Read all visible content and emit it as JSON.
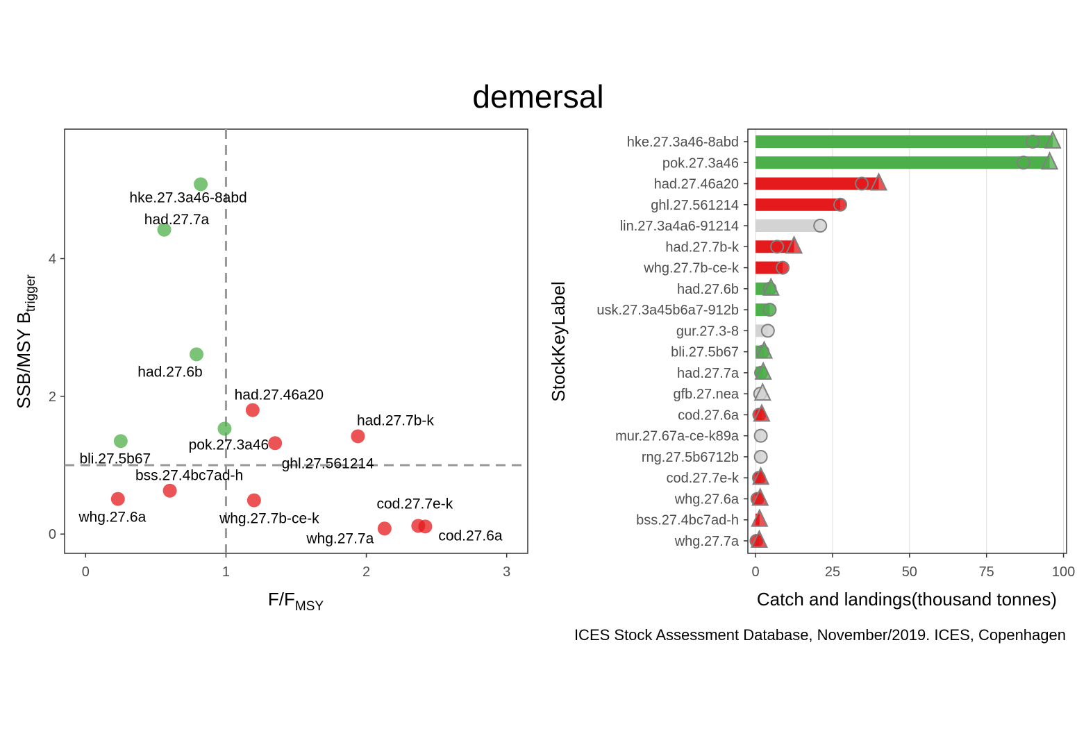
{
  "title": "demersal",
  "caption": "ICES Stock Assessment Database, November/2019. ICES, Copenhagen",
  "colors": {
    "green": "#4daf4a",
    "red": "#e41a1c",
    "grey": "#d3d3d3",
    "refline": "#999999",
    "outline": "#808080"
  },
  "chart_data": [
    {
      "type": "scatter",
      "title": "",
      "xlabel_main": "F/F",
      "xlabel_sub": "MSY",
      "ylabel_main": "SSB/MSY B",
      "ylabel_sub": "trigger",
      "xlim": [
        -0.15,
        3.15
      ],
      "ylim": [
        -0.28,
        5.88
      ],
      "xticks": [
        0,
        1,
        2,
        3
      ],
      "yticks": [
        0,
        2,
        4
      ],
      "reference_lines": {
        "x": 1,
        "y": 1
      },
      "points": [
        {
          "label": "hke.27.3a46-8abd",
          "x": 0.82,
          "y": 5.08,
          "status": "green"
        },
        {
          "label": "had.27.7a",
          "x": 0.56,
          "y": 4.42,
          "status": "green"
        },
        {
          "label": "had.27.6b",
          "x": 0.79,
          "y": 2.61,
          "status": "green"
        },
        {
          "label": "pok.27.3a46",
          "x": 0.99,
          "y": 1.53,
          "status": "green"
        },
        {
          "label": "bli.27.5b67",
          "x": 0.25,
          "y": 1.35,
          "status": "green"
        },
        {
          "label": "had.27.46a20",
          "x": 1.19,
          "y": 1.8,
          "status": "red"
        },
        {
          "label": "had.27.7b-k",
          "x": 1.94,
          "y": 1.42,
          "status": "red"
        },
        {
          "label": "ghl.27.561214",
          "x": 1.35,
          "y": 1.32,
          "status": "red"
        },
        {
          "label": "bss.27.4bc7ad-h",
          "x": 0.6,
          "y": 0.63,
          "status": "red"
        },
        {
          "label": "whg.27.6a",
          "x": 0.23,
          "y": 0.51,
          "status": "red"
        },
        {
          "label": "whg.27.7b-ce-k",
          "x": 1.2,
          "y": 0.49,
          "status": "red"
        },
        {
          "label": "cod.27.7e-k",
          "x": 2.37,
          "y": 0.12,
          "status": "red"
        },
        {
          "label": "cod.27.6a",
          "x": 2.42,
          "y": 0.11,
          "status": "red"
        },
        {
          "label": "whg.27.7a",
          "x": 2.13,
          "y": 0.08,
          "status": "red"
        }
      ]
    },
    {
      "type": "bar",
      "orientation": "horizontal",
      "xlabel": "Catch and landings(thousand tonnes)",
      "ylabel": "StockKeyLabel",
      "xlim": [
        -2.5,
        101
      ],
      "xticks": [
        0,
        25,
        50,
        75,
        100
      ],
      "grid": "vertical",
      "categories": [
        "hke.27.3a46-8abd",
        "pok.27.3a46",
        "had.27.46a20",
        "ghl.27.561214",
        "lin.27.3a4a6-91214",
        "had.27.7b-k",
        "whg.27.7b-ce-k",
        "had.27.6b",
        "usk.27.3a45b6a7-912b",
        "gur.27.3-8",
        "bli.27.5b67",
        "had.27.7a",
        "gfb.27.nea",
        "cod.27.6a",
        "mur.27.67a-ce-k89a",
        "rng.27.5b6712b",
        "cod.27.7e-k",
        "whg.27.6a",
        "bss.27.4bc7ad-h",
        "whg.27.7a"
      ],
      "status": [
        "green",
        "green",
        "red",
        "red",
        "grey",
        "red",
        "red",
        "green",
        "green",
        "grey",
        "green",
        "green",
        "grey",
        "red",
        "grey",
        "grey",
        "red",
        "red",
        "red",
        "red"
      ],
      "series": [
        {
          "name": "landings",
          "marker": "circle",
          "values": [
            90,
            87,
            34.5,
            27.5,
            21,
            7,
            8.8,
            4.6,
            4.6,
            4,
            2.3,
            1.8,
            1.5,
            1.2,
            1.7,
            1.7,
            1.1,
            0.6,
            null,
            0.3
          ]
        },
        {
          "name": "catch",
          "marker": "triangle",
          "values": [
            96.5,
            95.5,
            40,
            null,
            null,
            12.5,
            null,
            5,
            null,
            null,
            2.8,
            2.5,
            2.3,
            2,
            null,
            null,
            1.7,
            1.5,
            1.3,
            1.2
          ]
        }
      ]
    }
  ]
}
